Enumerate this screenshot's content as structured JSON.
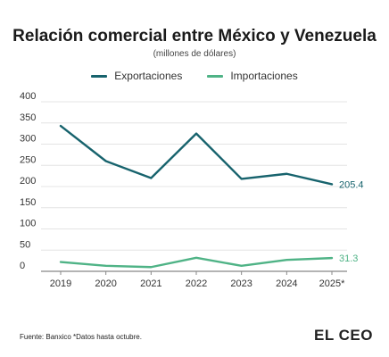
{
  "title": "Relación comercial entre México y Venezuela",
  "subtitle": "(millones de dólares)",
  "footer": "Fuente: Banxico *Datos hasta octubre.",
  "brand": "EL CEO",
  "colors": {
    "exportaciones": "#17636d",
    "importaciones": "#4fb386",
    "grid": "#e4e4e4",
    "axis": "#888888"
  },
  "chart_data": {
    "type": "line",
    "title": "Relación comercial entre México y Venezuela",
    "subtitle": "(millones de dólares)",
    "categories": [
      "2019",
      "2020",
      "2021",
      "2022",
      "2023",
      "2024",
      "2025*"
    ],
    "series": [
      {
        "name": "Exportaciones",
        "values": [
          343,
          260,
          220,
          325,
          218,
          230,
          205.4
        ],
        "end_label": "205.4"
      },
      {
        "name": "Importaciones",
        "values": [
          22,
          13,
          10,
          32,
          13,
          27,
          31.3
        ],
        "end_label": "31.3"
      }
    ],
    "yticks": [
      "0",
      "50",
      "100",
      "150",
      "200",
      "250",
      "300",
      "350",
      "400"
    ],
    "ylim": [
      0,
      400
    ],
    "grid": true,
    "legend": "top-center"
  }
}
